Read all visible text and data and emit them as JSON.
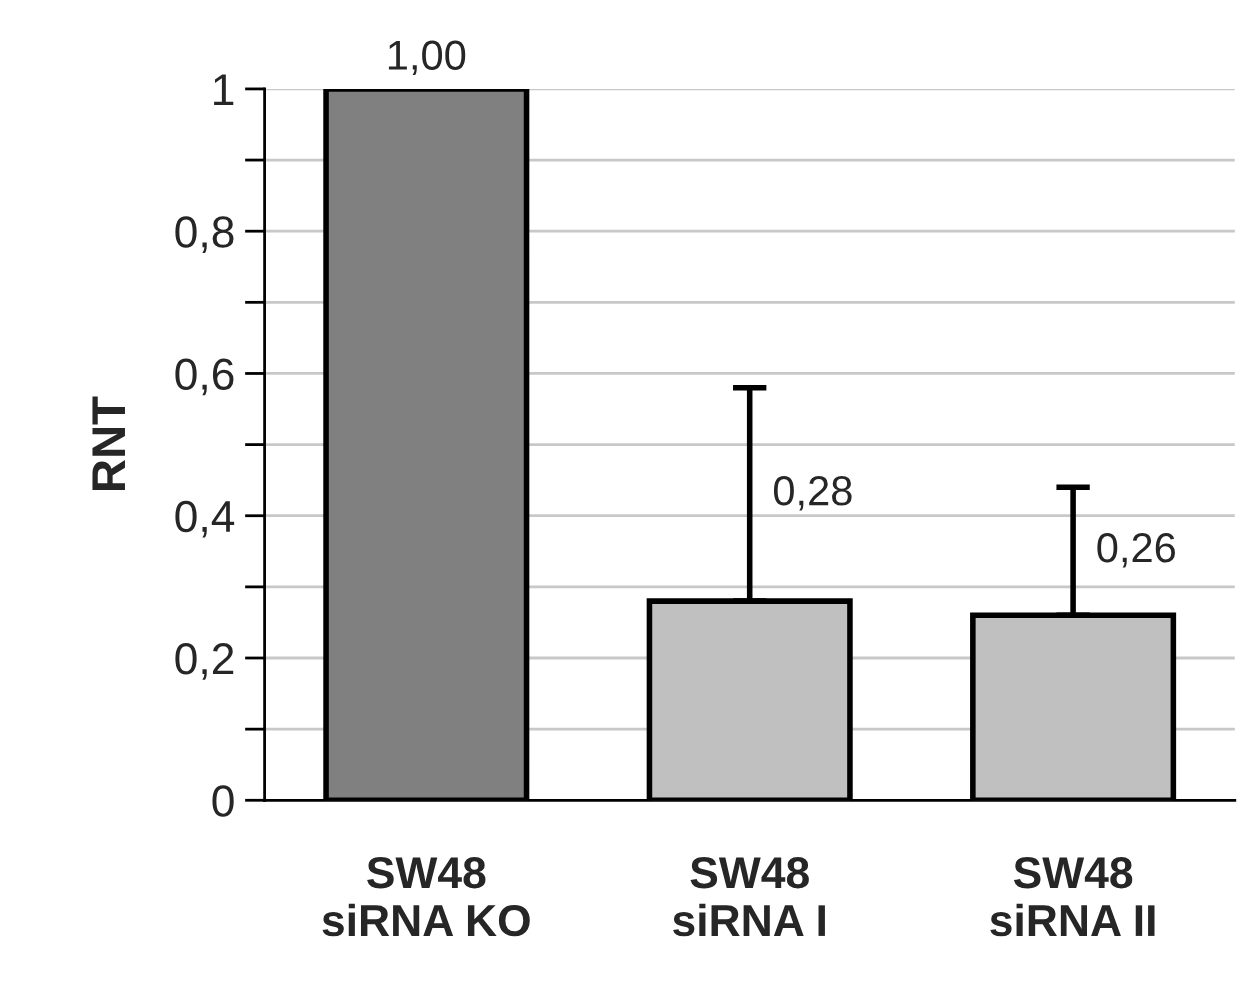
{
  "chart_data": {
    "type": "bar",
    "ylabel": "RNT",
    "categories": [
      "SW48\nsiRNA KO",
      "SW48\nsiRNA I",
      "SW48\nsiRNA II"
    ],
    "values": [
      1.0,
      0.28,
      0.26
    ],
    "value_labels": [
      "1,00",
      "0,28",
      "0,26"
    ],
    "errors": [
      null,
      [
        0.28,
        0.58
      ],
      [
        0.26,
        0.44
      ]
    ],
    "colors": [
      "#808080",
      "#c0c0c0",
      "#c0c0c0"
    ],
    "ylim": [
      0,
      1
    ],
    "yticks": [
      {
        "value": 0,
        "label": "0"
      },
      {
        "value": 0.1,
        "label": null
      },
      {
        "value": 0.2,
        "label": "0,2"
      },
      {
        "value": 0.3,
        "label": null
      },
      {
        "value": 0.4,
        "label": "0,4"
      },
      {
        "value": 0.5,
        "label": null
      },
      {
        "value": 0.6,
        "label": "0,6"
      },
      {
        "value": 0.7,
        "label": null
      },
      {
        "value": 0.8,
        "label": "0,8"
      },
      {
        "value": 0.9,
        "label": null
      },
      {
        "value": 1,
        "label": "1"
      }
    ],
    "grid": "y",
    "legend": false
  }
}
